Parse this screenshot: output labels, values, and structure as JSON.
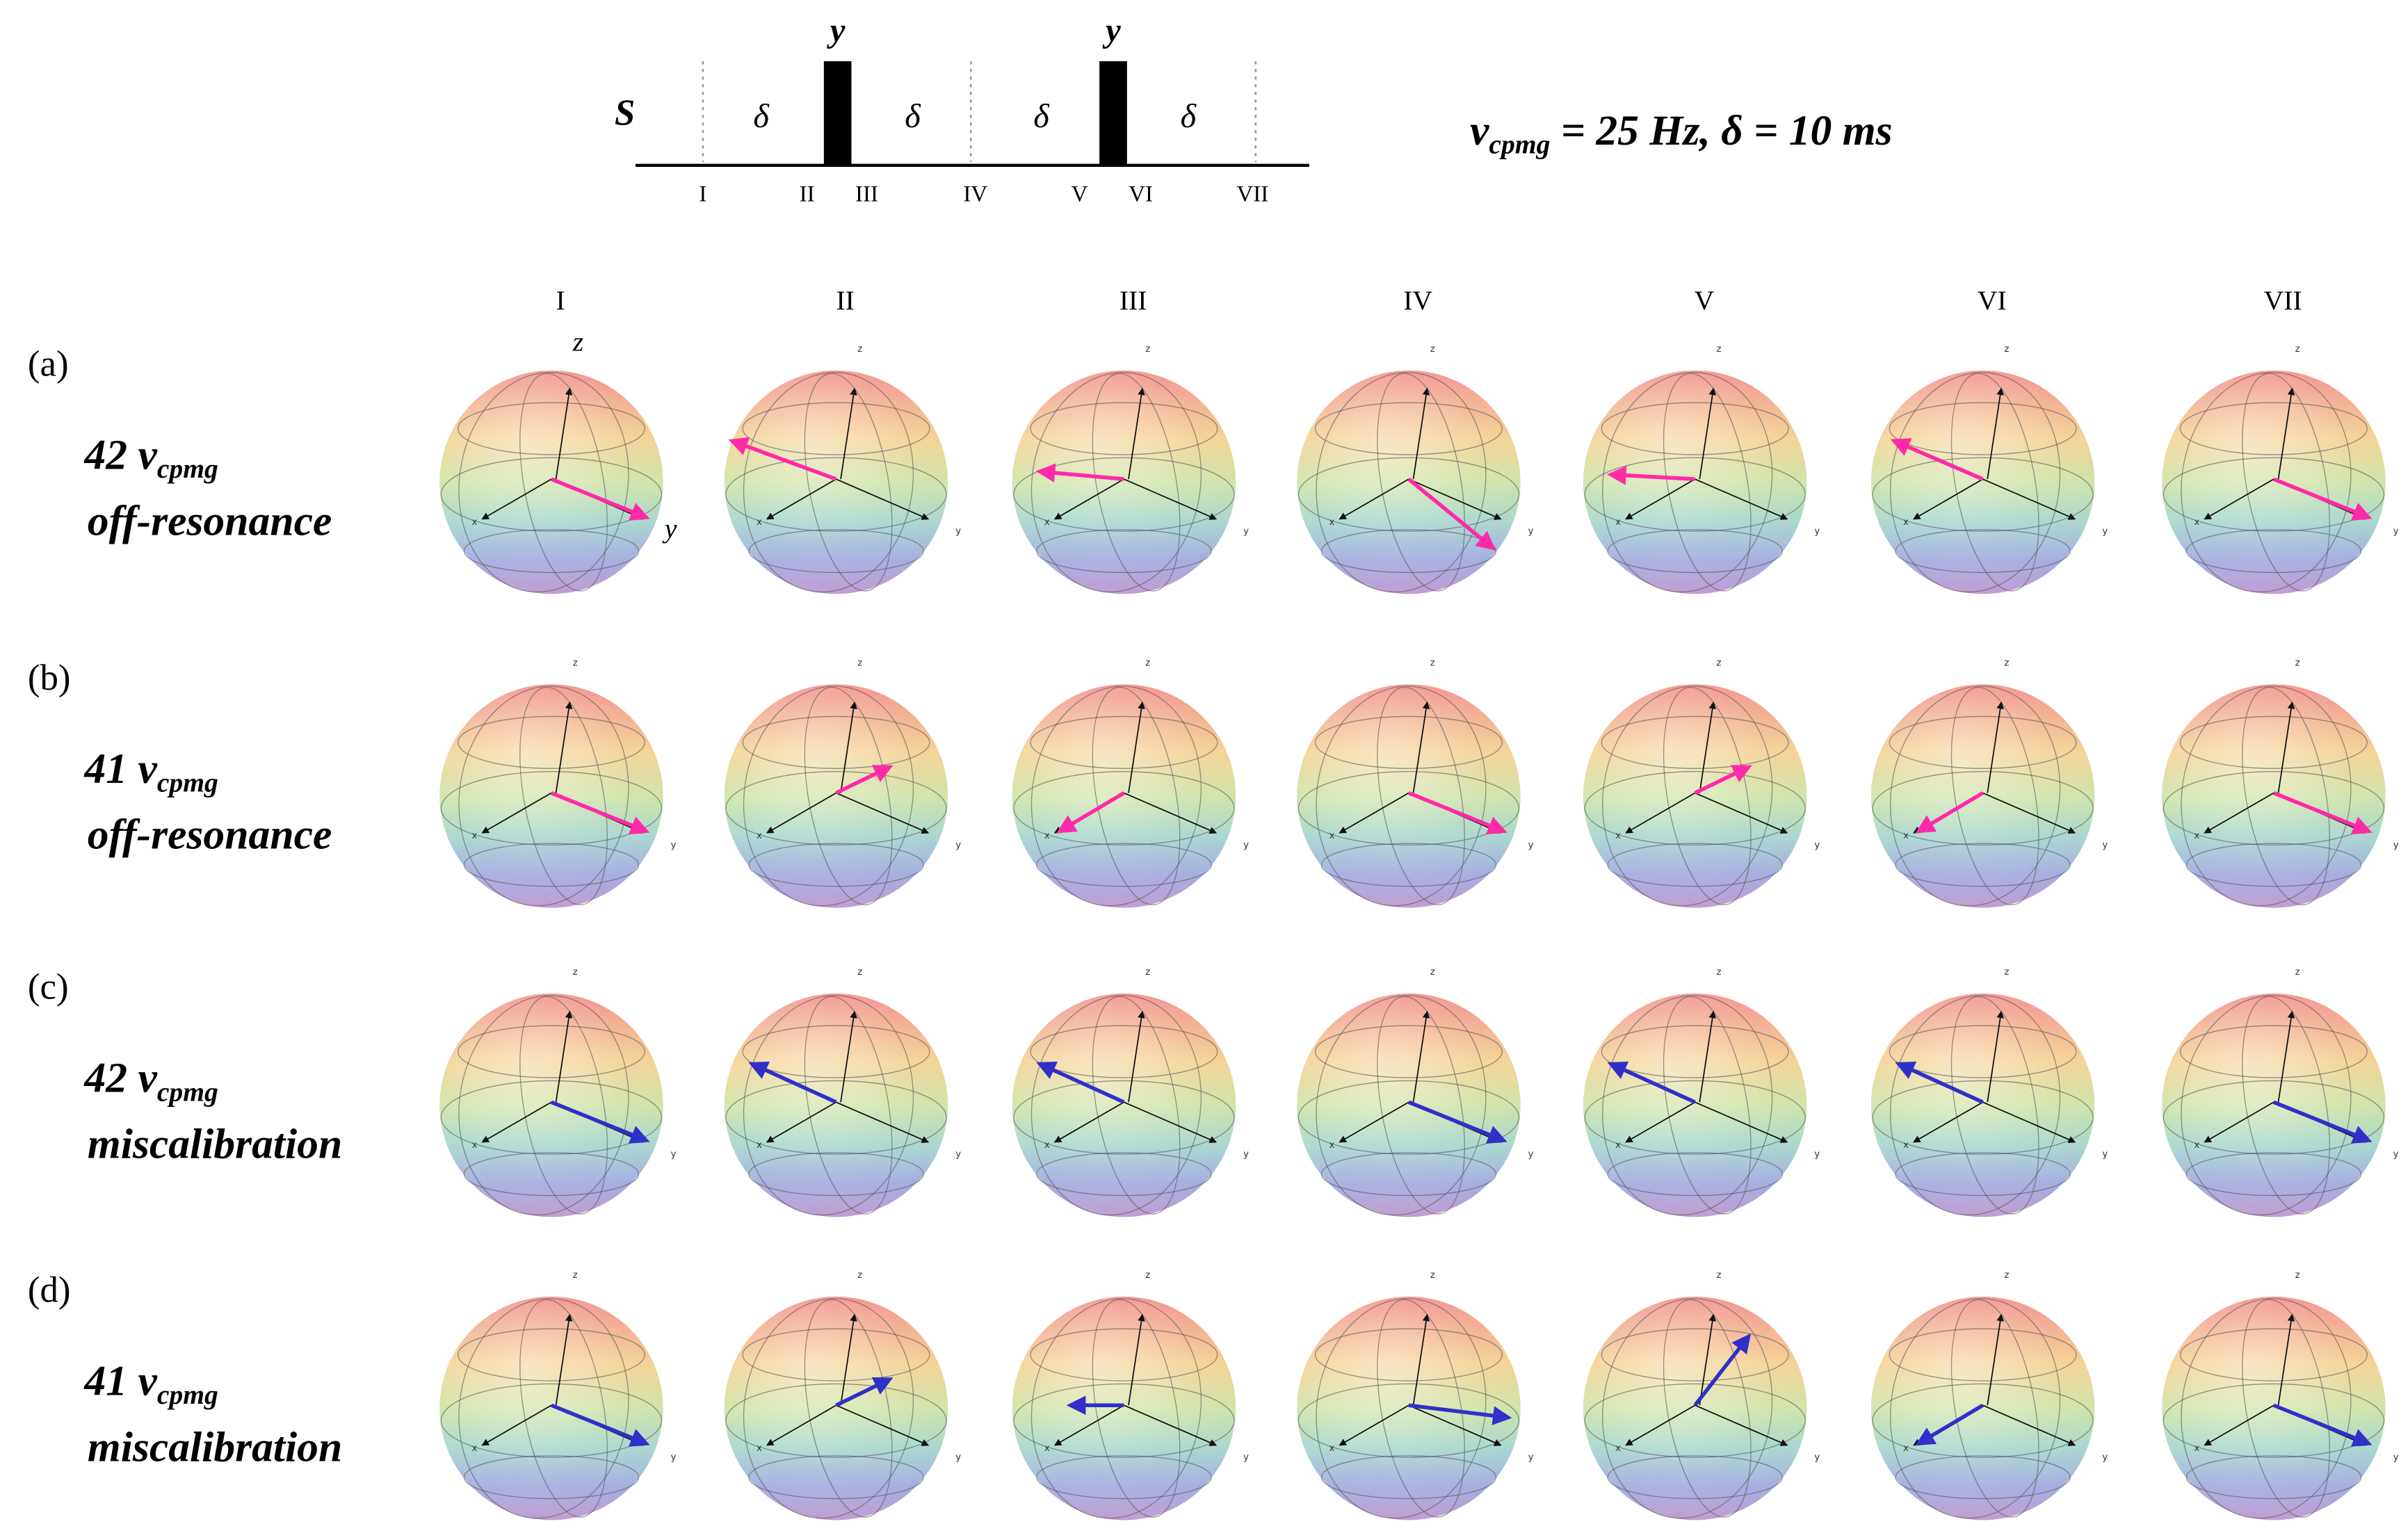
{
  "pulse_sequence": {
    "channel": "S",
    "delay": "δ",
    "pulse_phase": "y",
    "timepoints": [
      "I",
      "II",
      "III",
      "IV",
      "V",
      "VI",
      "VII"
    ]
  },
  "condition": {
    "symbol": "ν",
    "subscript": "cpmg",
    "rest": " = 25 Hz, δ = 10 ms"
  },
  "columns": [
    "I",
    "II",
    "III",
    "IV",
    "V",
    "VI",
    "VII"
  ],
  "rows": [
    {
      "label": "(a)",
      "count": "42 ν",
      "subscript": "cpmg",
      "description": "off-resonance"
    },
    {
      "label": "(b)",
      "count": "41 ν",
      "subscript": "cpmg",
      "description": "off-resonance"
    },
    {
      "label": "(c)",
      "count": "42 ν",
      "subscript": "cpmg",
      "description": "miscalibration"
    },
    {
      "label": "(d)",
      "count": "41 ν",
      "subscript": "cpmg",
      "description": "miscalibration"
    }
  ],
  "sphere_axes": {
    "x": "x",
    "y": "y",
    "z": "z"
  }
}
